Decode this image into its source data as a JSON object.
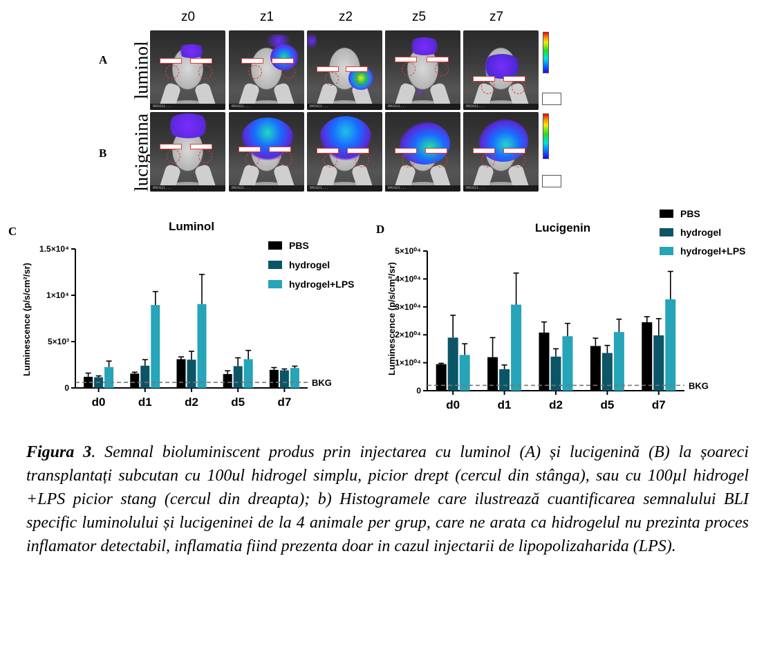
{
  "image_panel": {
    "columns": [
      "z0",
      "z1",
      "z2",
      "z5",
      "z7"
    ],
    "rows": [
      {
        "letter": "A",
        "name": "luminol"
      },
      {
        "letter": "B",
        "name": "lucigenina"
      }
    ]
  },
  "charts": [
    {
      "panel": "C",
      "chart_data": {
        "type": "bar",
        "title": "Luminol",
        "ylabel": "Luminescence  (p/s/cm²/sr)",
        "categories": [
          "d0",
          "d1",
          "d2",
          "d5",
          "d7"
        ],
        "ylim": [
          0,
          15000
        ],
        "yticks": [
          0,
          5000,
          10000,
          15000
        ],
        "ytick_labels": [
          "0",
          "5×10³",
          "1×10⁴",
          "1.5×10⁴"
        ],
        "series": [
          {
            "name": "PBS",
            "color": "#000000",
            "values": [
              1200,
              1550,
              3100,
              1500,
              1950
            ],
            "errors": [
              400,
              150,
              250,
              350,
              250
            ]
          },
          {
            "name": "hydrogel",
            "color": "#0c5566",
            "values": [
              1150,
              2400,
              3050,
              2350,
              1900
            ],
            "errors": [
              150,
              650,
              900,
              900,
              150
            ]
          },
          {
            "name": "hydrogel+LPS",
            "color": "#26a4b8",
            "values": [
              2250,
              8950,
              9050,
              3100,
              2150
            ],
            "errors": [
              650,
              1450,
              3200,
              950,
              200
            ]
          }
        ],
        "baseline": {
          "label": "BKG",
          "value": 600
        }
      }
    },
    {
      "panel": "D",
      "chart_data": {
        "type": "bar",
        "title": "Lucigenin",
        "ylabel": "Luminescence  (p/s/cm²/sr)",
        "categories": [
          "d0",
          "d1",
          "d2",
          "d5",
          "d7"
        ],
        "ylim": [
          0,
          50000
        ],
        "yticks": [
          0,
          10000,
          20000,
          30000,
          40000,
          50000
        ],
        "ytick_labels": [
          "0",
          "1×10⁰⁴",
          "2×10⁰⁴",
          "3×10⁰⁴",
          "4×10⁰⁴",
          "5×10⁰⁴"
        ],
        "series": [
          {
            "name": "PBS",
            "color": "#000000",
            "values": [
              9500,
              12000,
              20800,
              16000,
              24500
            ],
            "errors": [
              300,
              7000,
              3800,
              2800,
              2000
            ]
          },
          {
            "name": "hydrogel",
            "color": "#0c5566",
            "values": [
              19000,
              7700,
              12200,
              13500,
              19800
            ],
            "errors": [
              8000,
              1500,
              2800,
              2700,
              6000
            ]
          },
          {
            "name": "hydrogel+LPS",
            "color": "#26a4b8",
            "values": [
              12800,
              30800,
              19500,
              21000,
              32700
            ],
            "errors": [
              4000,
              11300,
              4600,
              4600,
              10000
            ]
          }
        ],
        "baseline": {
          "label": "BKG",
          "value": 1900
        }
      }
    }
  ],
  "caption": {
    "label": "Figura 3",
    "text": ". Semnal bioluminiscent produs prin injectarea cu luminol (A) și lucigenină (B) la șoareci transplantați subcutan cu 100ul hidrogel simplu, picior drept (cercul din stânga), sau cu 100µl hidrogel +LPS picior stang (cercul din dreapta); b) Histogramele care ilustrează cuantificarea semnalului BLI specific luminolului și lucigeninei de la 4 animale per grup, care ne arata ca hidrogelul nu prezinta proces inflamator detectabil, inflamatia fiind prezenta doar in cazul injectarii de lipopolizaharida (LPS)."
  }
}
